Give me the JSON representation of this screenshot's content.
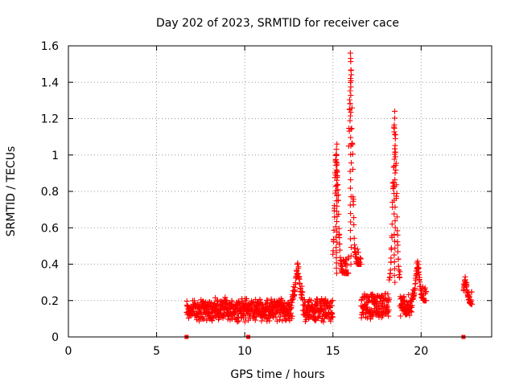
{
  "chart_data": {
    "type": "scatter",
    "title": "Day 202 of 2023, SRMTID for receiver cace",
    "xlabel": "GPS time / hours",
    "ylabel": "SRMTID / TECUs",
    "xlim": [
      0,
      24
    ],
    "ylim": [
      0,
      1.6
    ],
    "xticks": [
      0,
      5,
      10,
      15,
      20
    ],
    "yticks": [
      0,
      0.2,
      0.4,
      0.6,
      0.8,
      1,
      1.2,
      1.4,
      1.6
    ],
    "ytick_labels": [
      "0",
      "0.2",
      "0.4",
      "0.6",
      "0.8",
      "1",
      "1.2",
      "1.4",
      "1.6"
    ],
    "grid": true,
    "series": [
      {
        "name": "SRMTID",
        "marker": "+",
        "color": "#ff0000",
        "segments": [
          {
            "x_start": 6.7,
            "x_end": 12.7,
            "base": 0.15,
            "amp": 0.05
          },
          {
            "x_start": 12.7,
            "x_end": 13.3,
            "base": 0.2,
            "amp": 0.07,
            "peak_x": 13.0,
            "peak_y": 0.41
          },
          {
            "x_start": 13.3,
            "x_end": 15.0,
            "base": 0.15,
            "amp": 0.05
          },
          {
            "x_start": 15.0,
            "x_end": 15.9,
            "base": 0.35,
            "amp": 0.08,
            "peak_x": 15.2,
            "peak_y": 1.06
          },
          {
            "x_start": 15.9,
            "x_end": 16.6,
            "base": 0.4,
            "amp": 0.1,
            "peak_x": 16.0,
            "peak_y": 1.56
          },
          {
            "x_start": 16.6,
            "x_end": 18.2,
            "base": 0.17,
            "amp": 0.06
          },
          {
            "x_start": 18.2,
            "x_end": 18.8,
            "base": 0.3,
            "amp": 0.08,
            "peak_x": 18.5,
            "peak_y": 1.24
          },
          {
            "x_start": 18.8,
            "x_end": 19.5,
            "base": 0.17,
            "amp": 0.05
          },
          {
            "x_start": 19.5,
            "x_end": 20.3,
            "base": 0.2,
            "amp": 0.08,
            "peak_x": 19.8,
            "peak_y": 0.43
          },
          {
            "x_start": 22.4,
            "x_end": 22.9,
            "base": 0.18,
            "amp": 0.06,
            "peak_x": 22.5,
            "peak_y": 0.33
          }
        ],
        "zero_points": [
          6.7,
          10.2,
          22.4
        ]
      }
    ]
  }
}
